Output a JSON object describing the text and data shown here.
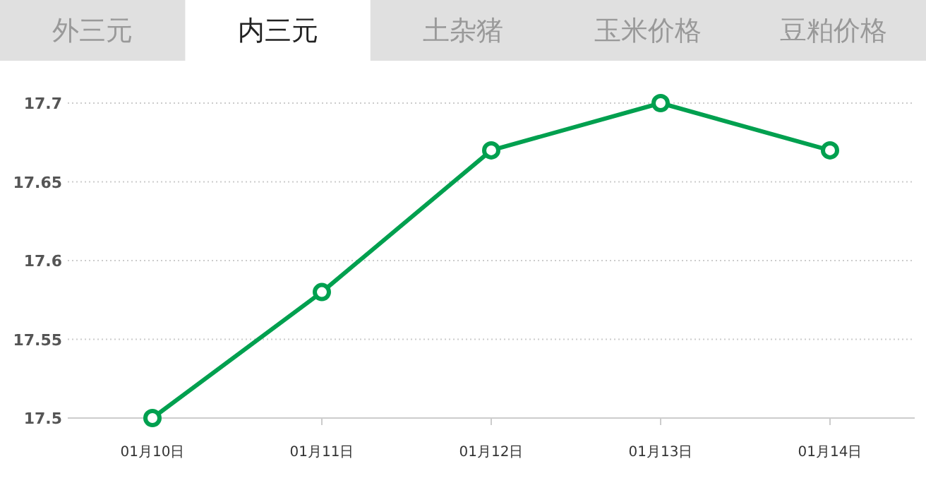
{
  "chart_data": {
    "type": "line",
    "annotations": [
      "外三元",
      "内三元",
      "土杂猪",
      "玉米价格",
      "豆粕价格"
    ],
    "categories": [
      "01月10日",
      "01月11日",
      "01月12日",
      "01月13日",
      "01月14日"
    ],
    "series": [
      {
        "color": "#00a04f",
        "values": [
          17.5,
          17.58,
          17.67,
          17.7,
          17.67
        ]
      }
    ],
    "ylim": [
      17.5,
      17.7
    ],
    "yticks": [
      17.5,
      17.55,
      17.6,
      17.65,
      17.7
    ],
    "grid": "y",
    "marker": "circle",
    "line_style": "solid"
  }
}
